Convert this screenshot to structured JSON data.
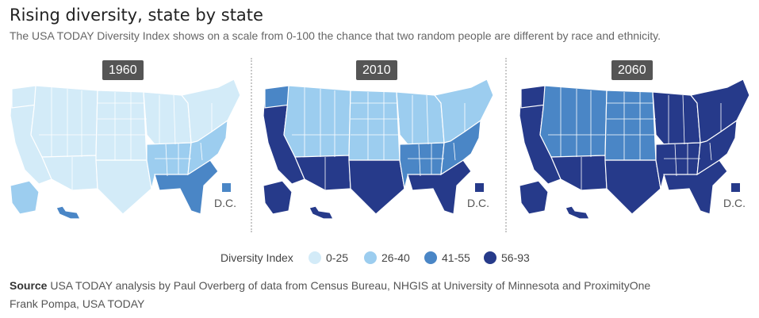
{
  "header": {
    "title": "Rising diversity, state by state",
    "subtitle": "The USA TODAY Diversity Index shows on a scale from 0-100 the chance that two random people are different by race and ethnicity."
  },
  "colors": {
    "c1": "#d3ebf8",
    "c2": "#9ccdef",
    "c3": "#4a86c6",
    "c4": "#263a8a",
    "badge_bg": "#555555",
    "divider": "#c9c9c9"
  },
  "maps": [
    {
      "year": "1960",
      "dc_label": "D.C.",
      "dc_level": 3
    },
    {
      "year": "2010",
      "dc_label": "D.C.",
      "dc_level": 4
    },
    {
      "year": "2060",
      "dc_label": "D.C.",
      "dc_level": 4
    }
  ],
  "legend": {
    "title": "Diversity Index",
    "items": [
      {
        "label": "0-25",
        "level": 1
      },
      {
        "label": "26-40",
        "level": 2
      },
      {
        "label": "41-55",
        "level": 3
      },
      {
        "label": "56-93",
        "level": 4
      }
    ]
  },
  "footer": {
    "source_label": "Source",
    "source_text": " USA TODAY analysis by Paul Overberg of data from Census Bureau, NHGIS at University of Minnesota and ProximityOne",
    "credit": "Frank Pompa, USA TODAY"
  }
}
